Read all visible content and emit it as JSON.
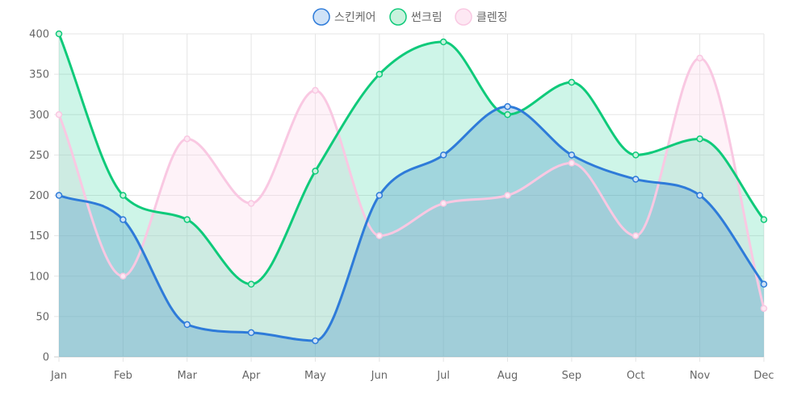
{
  "chart_data": {
    "type": "area",
    "categories": [
      "Jan",
      "Feb",
      "Mar",
      "Apr",
      "May",
      "Jun",
      "Jul",
      "Aug",
      "Sep",
      "Oct",
      "Nov",
      "Dec"
    ],
    "ylim": [
      0,
      400
    ],
    "yticks": [
      0,
      50,
      100,
      150,
      200,
      250,
      300,
      350,
      400
    ],
    "grid": true,
    "legend_position": "top-center",
    "series": [
      {
        "name": "스킨케어",
        "values": [
          200,
          170,
          40,
          30,
          20,
          200,
          250,
          310,
          250,
          220,
          200,
          90
        ],
        "stroke": "#2e7bd9",
        "fill": "#2e86c1",
        "fill_opacity": 0.28,
        "legend_fill": "#cfe2f7"
      },
      {
        "name": "썬크림",
        "values": [
          400,
          200,
          170,
          90,
          230,
          350,
          390,
          300,
          340,
          250,
          270,
          170
        ],
        "stroke": "#0fca7a",
        "fill": "#1fd394",
        "fill_opacity": 0.22,
        "legend_fill": "#c8f2dd"
      },
      {
        "name": "클렌징",
        "values": [
          300,
          100,
          270,
          190,
          330,
          150,
          190,
          200,
          240,
          150,
          370,
          60
        ],
        "stroke": "#f9c8e2",
        "fill": "#fbd6ea",
        "fill_opacity": 0.32,
        "legend_fill": "#fde8f3"
      }
    ]
  }
}
